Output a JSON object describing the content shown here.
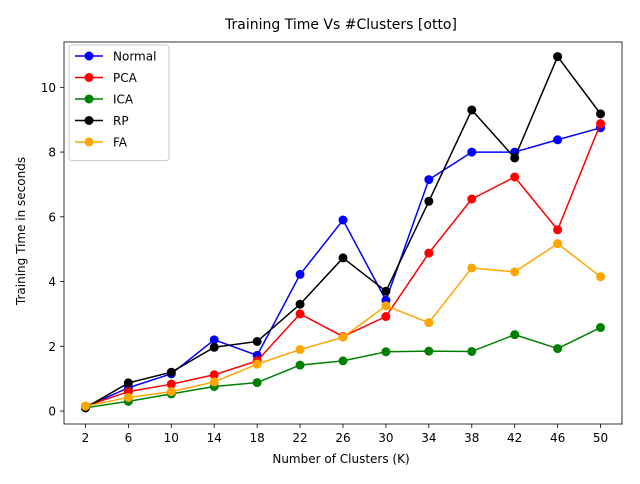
{
  "chart_data": {
    "type": "line",
    "title": "Training Time Vs #Clusters [otto]",
    "xlabel": "Number of Clusters (K)",
    "ylabel": "Training Time in seconds",
    "categories": [
      "2",
      "6",
      "10",
      "14",
      "18",
      "22",
      "26",
      "30",
      "34",
      "38",
      "42",
      "46",
      "50"
    ],
    "ylim": [
      -0.4,
      11.4
    ],
    "yticks": [
      0,
      2,
      4,
      6,
      8,
      10
    ],
    "grid": false,
    "legend_position": "top-left",
    "series": [
      {
        "name": "Normal",
        "color": "#0000ff",
        "values": [
          0.13,
          0.72,
          1.15,
          2.2,
          1.72,
          4.22,
          5.9,
          3.42,
          7.15,
          8.0,
          8.0,
          8.38,
          8.75
        ]
      },
      {
        "name": "PCA",
        "color": "#ff0000",
        "values": [
          0.15,
          0.6,
          0.83,
          1.12,
          1.55,
          3.0,
          2.3,
          2.92,
          4.88,
          6.55,
          7.23,
          5.6,
          8.88
        ]
      },
      {
        "name": "ICA",
        "color": "#008000",
        "values": [
          0.1,
          0.3,
          0.53,
          0.76,
          0.88,
          1.42,
          1.55,
          1.83,
          1.85,
          1.84,
          2.36,
          1.93,
          2.58
        ]
      },
      {
        "name": "RP",
        "color": "#000000",
        "values": [
          0.1,
          0.87,
          1.2,
          1.97,
          2.15,
          3.3,
          4.73,
          3.7,
          6.48,
          9.3,
          7.82,
          10.95,
          9.18
        ]
      },
      {
        "name": "FA",
        "color": "#ffa500",
        "values": [
          0.15,
          0.42,
          0.6,
          0.9,
          1.45,
          1.9,
          2.28,
          3.25,
          2.73,
          4.42,
          4.3,
          5.17,
          4.15
        ]
      }
    ]
  }
}
